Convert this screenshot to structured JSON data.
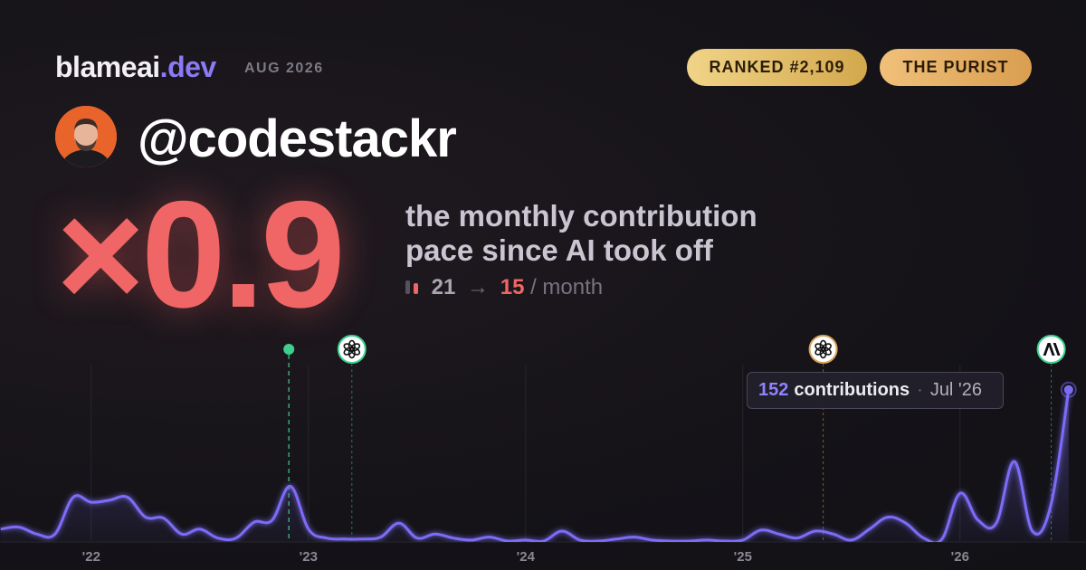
{
  "brand": {
    "name": "blameai",
    "tld": ".dev",
    "date": "AUG 2026"
  },
  "badges": [
    "RANKED #2,109",
    "THE PURIST"
  ],
  "handle": "@codestackr",
  "multiplier": "×0.9",
  "headline": [
    "the monthly contribution",
    "pace since AI took off"
  ],
  "pace": {
    "before": 21,
    "arrow": "→",
    "after": 15,
    "unit": "/ month"
  },
  "chart_data": {
    "type": "area",
    "x": [
      2021.583,
      2021.667,
      2021.75,
      2021.833,
      2021.917,
      2022,
      2022.083,
      2022.167,
      2022.25,
      2022.333,
      2022.417,
      2022.5,
      2022.583,
      2022.667,
      2022.75,
      2022.833,
      2022.917,
      2023,
      2023.083,
      2023.167,
      2023.25,
      2023.333,
      2023.417,
      2023.5,
      2023.583,
      2023.667,
      2023.75,
      2023.833,
      2023.917,
      2024,
      2024.083,
      2024.167,
      2024.25,
      2024.333,
      2024.417,
      2024.5,
      2024.583,
      2024.667,
      2024.75,
      2024.833,
      2024.917,
      2025,
      2025.083,
      2025.167,
      2025.25,
      2025.333,
      2025.417,
      2025.5,
      2025.583,
      2025.667,
      2025.75,
      2025.833,
      2025.917,
      2026,
      2026.083,
      2026.167,
      2026.25,
      2026.333,
      2026.417,
      2026.5
    ],
    "values": [
      12,
      14,
      7,
      7,
      44,
      39,
      41,
      44,
      24,
      23,
      7,
      12,
      3,
      3,
      19,
      21,
      55,
      12,
      3,
      2,
      2,
      4,
      18,
      3,
      7,
      3,
      1,
      4,
      0,
      1,
      0,
      10,
      1,
      0,
      2,
      4,
      1,
      0,
      0,
      1,
      0,
      1,
      11,
      7,
      3,
      10,
      7,
      1,
      12,
      24,
      18,
      3,
      2,
      48,
      21,
      18,
      80,
      10,
      35,
      152
    ],
    "color": "#7b6cf6",
    "xlim": [
      2021.58,
      2026.58
    ],
    "ylim": [
      0,
      160
    ],
    "xticks": [
      {
        "value": 2022,
        "label": "'22"
      },
      {
        "value": 2023,
        "label": "'23"
      },
      {
        "value": 2024,
        "label": "'24"
      },
      {
        "value": 2025,
        "label": "'25"
      },
      {
        "value": 2026,
        "label": "'26"
      }
    ],
    "grid": true,
    "events": [
      {
        "x": 2022.91,
        "kind": "dot"
      },
      {
        "x": 2023.2,
        "kind": "openai"
      },
      {
        "x": 2025.37,
        "kind": "openai-gold"
      },
      {
        "x": 2026.42,
        "kind": "anthropic"
      }
    ],
    "tooltip": {
      "value": 152,
      "label": "contributions",
      "date": "Jul '26"
    }
  }
}
